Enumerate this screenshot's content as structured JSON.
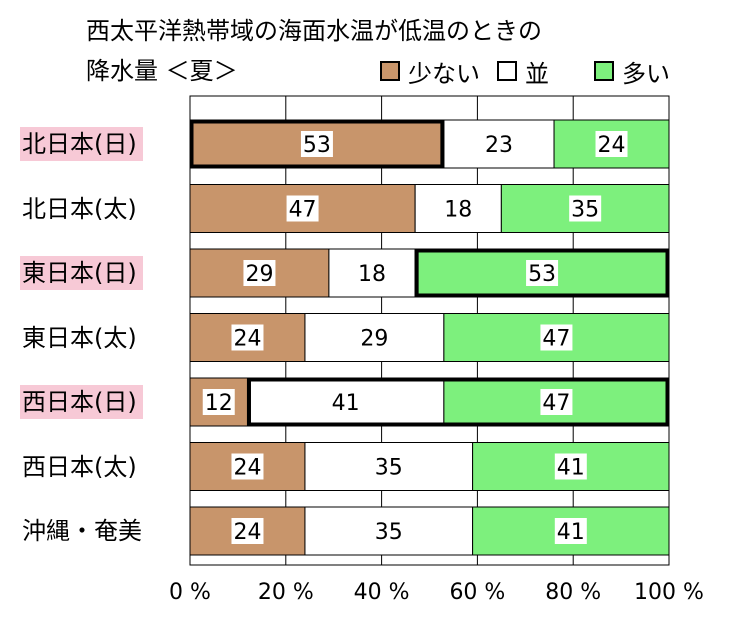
{
  "title_line1": "西太平洋熱帯域の海面水温が低温のときの",
  "title_line2": "降水量 ＜夏＞",
  "chart_data": {
    "type": "bar",
    "orientation": "horizontal-stacked-100",
    "title": "西太平洋熱帯域の海面水温が低温のときの 降水量 ＜夏＞",
    "xlim": [
      0,
      100
    ],
    "x_ticks": [
      "0 %",
      "20 %",
      "40 %",
      "60 %",
      "80 %",
      "100 %"
    ],
    "grid": "vertical",
    "legend_placement": "top-right",
    "categories": [
      {
        "label": "北日本(日)",
        "highlight": true
      },
      {
        "label": "北日本(太)",
        "highlight": false
      },
      {
        "label": "東日本(日)",
        "highlight": true
      },
      {
        "label": "東日本(太)",
        "highlight": false
      },
      {
        "label": "西日本(日)",
        "highlight": true
      },
      {
        "label": "西日本(太)",
        "highlight": false
      },
      {
        "label": "沖縄・奄美",
        "highlight": false
      }
    ],
    "series": [
      {
        "name": "少ない",
        "color": "#c8956b",
        "values": [
          53,
          47,
          29,
          24,
          12,
          24,
          24
        ]
      },
      {
        "name": "並",
        "color": "#ffffff",
        "values": [
          23,
          18,
          18,
          29,
          41,
          35,
          35
        ]
      },
      {
        "name": "多い",
        "color": "#7df07d",
        "values": [
          24,
          35,
          53,
          47,
          47,
          41,
          41
        ]
      }
    ],
    "emphasized_segments": [
      {
        "category": 0,
        "series": 0
      },
      {
        "category": 2,
        "series": 2
      },
      {
        "category": 4,
        "series": [
          1,
          2
        ]
      }
    ]
  }
}
